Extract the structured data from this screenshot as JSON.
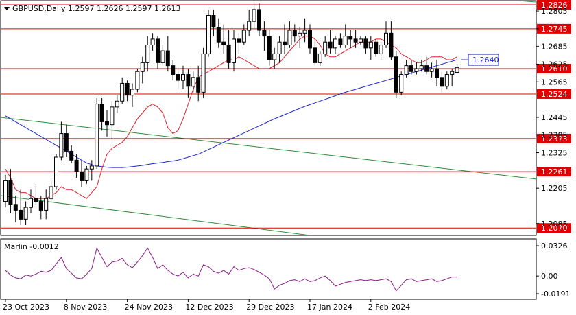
{
  "header": {
    "symbol_line": "GBPUSD,Daily  1.2597  1.2626  1.2597  1.2613",
    "marlin_line": "Marlin -0.0012"
  },
  "colors": {
    "up_candle": "#ffffff",
    "down_candle": "#000000",
    "level_line": "#e00000",
    "fast_ma": "#e0202a",
    "slow_ma": "#1a22d4",
    "trendline": "#2e8b3a",
    "oscillator": "#8a1a8a",
    "grid_frame": "#000000"
  },
  "chart_data": [
    {
      "type": "candlestick",
      "title": "GBPUSD,Daily",
      "ohlc_last": {
        "open": 1.2597,
        "high": 1.2626,
        "low": 1.2597,
        "close": 1.2613
      },
      "ylim": [
        1.2045,
        1.284
      ],
      "y_ticks": [
        "1.2805",
        "1.2745",
        "1.2685",
        "1.2625",
        "1.2565",
        "1.2445",
        "1.2385",
        "1.2325",
        "1.2205",
        "1.2085"
      ],
      "x_labels": [
        "23 Oct 2023",
        "8 Nov 2023",
        "24 Nov 2023",
        "12 Dec 2023",
        "29 Dec 2023",
        "17 Jan 2024",
        "2 Feb 2024"
      ],
      "x_label_positions": [
        0,
        12,
        24,
        36,
        48,
        60,
        72
      ],
      "levels": [
        {
          "label": "1.2826",
          "value": 1.2826
        },
        {
          "label": "1.2745",
          "value": 1.2745
        },
        {
          "label": "1.2610",
          "value": 1.261
        },
        {
          "label": "1.2524",
          "value": 1.2524
        },
        {
          "label": "1.2373",
          "value": 1.2373
        },
        {
          "label": "1.2261",
          "value": 1.2261
        },
        {
          "label": "1.2070",
          "value": 1.207
        }
      ],
      "ma_marker": {
        "label": "1.2640",
        "value": 1.264
      },
      "candles": [
        [
          1.216,
          1.225,
          1.214,
          1.223
        ],
        [
          1.223,
          1.227,
          1.212,
          1.215
        ],
        [
          1.215,
          1.218,
          1.209,
          1.213
        ],
        [
          1.213,
          1.22,
          1.208,
          1.21
        ],
        [
          1.21,
          1.216,
          1.208,
          1.214
        ],
        [
          1.214,
          1.22,
          1.212,
          1.217
        ],
        [
          1.217,
          1.222,
          1.215,
          1.216
        ],
        [
          1.216,
          1.218,
          1.21,
          1.213
        ],
        [
          1.213,
          1.22,
          1.21,
          1.217
        ],
        [
          1.217,
          1.223,
          1.216,
          1.221
        ],
        [
          1.221,
          1.232,
          1.22,
          1.231
        ],
        [
          1.231,
          1.243,
          1.23,
          1.239
        ],
        [
          1.239,
          1.242,
          1.231,
          1.233
        ],
        [
          1.233,
          1.235,
          1.229,
          1.23
        ],
        [
          1.23,
          1.232,
          1.224,
          1.226
        ],
        [
          1.226,
          1.23,
          1.221,
          1.223
        ],
        [
          1.223,
          1.228,
          1.222,
          1.227
        ],
        [
          1.227,
          1.23,
          1.223,
          1.228
        ],
        [
          1.228,
          1.251,
          1.227,
          1.249
        ],
        [
          1.249,
          1.251,
          1.24,
          1.243
        ],
        [
          1.243,
          1.247,
          1.238,
          1.242
        ],
        [
          1.242,
          1.25,
          1.237,
          1.248
        ],
        [
          1.248,
          1.252,
          1.246,
          1.25
        ],
        [
          1.25,
          1.258,
          1.249,
          1.256
        ],
        [
          1.256,
          1.257,
          1.25,
          1.252
        ],
        [
          1.252,
          1.256,
          1.248,
          1.254
        ],
        [
          1.254,
          1.261,
          1.253,
          1.26
        ],
        [
          1.26,
          1.265,
          1.256,
          1.263
        ],
        [
          1.263,
          1.272,
          1.26,
          1.269
        ],
        [
          1.269,
          1.273,
          1.267,
          1.271
        ],
        [
          1.271,
          1.272,
          1.261,
          1.263
        ],
        [
          1.263,
          1.269,
          1.262,
          1.267
        ],
        [
          1.267,
          1.272,
          1.26,
          1.262
        ],
        [
          1.262,
          1.264,
          1.257,
          1.259
        ],
        [
          1.259,
          1.261,
          1.254,
          1.257
        ],
        [
          1.257,
          1.262,
          1.254,
          1.259
        ],
        [
          1.259,
          1.261,
          1.251,
          1.255
        ],
        [
          1.255,
          1.26,
          1.253,
          1.258
        ],
        [
          1.258,
          1.262,
          1.25,
          1.253
        ],
        [
          1.253,
          1.268,
          1.251,
          1.266
        ],
        [
          1.266,
          1.281,
          1.265,
          1.279
        ],
        [
          1.279,
          1.281,
          1.272,
          1.275
        ],
        [
          1.275,
          1.278,
          1.268,
          1.27
        ],
        [
          1.27,
          1.276,
          1.266,
          1.269
        ],
        [
          1.269,
          1.274,
          1.261,
          1.263
        ],
        [
          1.263,
          1.274,
          1.26,
          1.271
        ],
        [
          1.271,
          1.273,
          1.266,
          1.27
        ],
        [
          1.27,
          1.276,
          1.269,
          1.274
        ],
        [
          1.274,
          1.281,
          1.272,
          1.277
        ],
        [
          1.277,
          1.283,
          1.274,
          1.281
        ],
        [
          1.281,
          1.283,
          1.272,
          1.274
        ],
        [
          1.274,
          1.277,
          1.267,
          1.272
        ],
        [
          1.272,
          1.274,
          1.262,
          1.264
        ],
        [
          1.264,
          1.268,
          1.261,
          1.266
        ],
        [
          1.266,
          1.272,
          1.263,
          1.27
        ],
        [
          1.27,
          1.276,
          1.266,
          1.269
        ],
        [
          1.269,
          1.277,
          1.268,
          1.274
        ],
        [
          1.274,
          1.276,
          1.27,
          1.272
        ],
        [
          1.272,
          1.275,
          1.268,
          1.273
        ],
        [
          1.273,
          1.278,
          1.27,
          1.274
        ],
        [
          1.274,
          1.276,
          1.266,
          1.268
        ],
        [
          1.268,
          1.271,
          1.262,
          1.263
        ],
        [
          1.263,
          1.267,
          1.262,
          1.266
        ],
        [
          1.266,
          1.272,
          1.265,
          1.27
        ],
        [
          1.27,
          1.274,
          1.266,
          1.268
        ],
        [
          1.268,
          1.272,
          1.266,
          1.271
        ],
        [
          1.271,
          1.273,
          1.268,
          1.269
        ],
        [
          1.269,
          1.276,
          1.268,
          1.272
        ],
        [
          1.272,
          1.274,
          1.268,
          1.271
        ],
        [
          1.271,
          1.274,
          1.268,
          1.27
        ],
        [
          1.27,
          1.272,
          1.269,
          1.271
        ],
        [
          1.271,
          1.272,
          1.266,
          1.268
        ],
        [
          1.268,
          1.272,
          1.264,
          1.27
        ],
        [
          1.27,
          1.271,
          1.265,
          1.266
        ],
        [
          1.266,
          1.27,
          1.264,
          1.269
        ],
        [
          1.269,
          1.277,
          1.268,
          1.273
        ],
        [
          1.273,
          1.277,
          1.264,
          1.265
        ],
        [
          1.265,
          1.267,
          1.251,
          1.253
        ],
        [
          1.253,
          1.26,
          1.252,
          1.259
        ],
        [
          1.259,
          1.264,
          1.258,
          1.262
        ],
        [
          1.262,
          1.264,
          1.259,
          1.26
        ],
        [
          1.26,
          1.263,
          1.259,
          1.261
        ],
        [
          1.261,
          1.264,
          1.26,
          1.262
        ],
        [
          1.262,
          1.265,
          1.259,
          1.26
        ],
        [
          1.26,
          1.263,
          1.258,
          1.261
        ],
        [
          1.261,
          1.264,
          1.255,
          1.258
        ],
        [
          1.258,
          1.26,
          1.253,
          1.255
        ],
        [
          1.255,
          1.26,
          1.254,
          1.259
        ],
        [
          1.259,
          1.261,
          1.255,
          1.26
        ],
        [
          1.2597,
          1.2626,
          1.2597,
          1.2613
        ]
      ],
      "fast_ma": [
        1.227,
        1.224,
        1.22,
        1.219,
        1.219,
        1.218,
        1.217,
        1.217,
        1.217,
        1.218,
        1.219,
        1.221,
        1.22,
        1.22,
        1.219,
        1.218,
        1.217,
        1.219,
        1.221,
        1.227,
        1.232,
        1.234,
        1.235,
        1.236,
        1.238,
        1.241,
        1.244,
        1.246,
        1.248,
        1.249,
        1.248,
        1.246,
        1.241,
        1.239,
        1.24,
        1.244,
        1.249,
        1.254,
        1.258,
        1.259,
        1.26,
        1.261,
        1.262,
        1.263,
        1.264,
        1.264,
        1.265,
        1.264,
        1.263,
        1.262,
        1.261,
        1.261,
        1.261,
        1.262,
        1.263,
        1.265,
        1.267,
        1.269,
        1.271,
        1.272,
        1.272,
        1.271,
        1.269,
        1.266,
        1.265,
        1.265,
        1.266,
        1.267,
        1.268,
        1.269,
        1.27,
        1.27,
        1.27,
        1.271,
        1.271,
        1.27,
        1.269,
        1.268,
        1.266,
        1.265,
        1.264,
        1.263,
        1.263,
        1.264,
        1.265,
        1.265,
        1.265,
        1.264,
        1.264,
        1.265
      ],
      "slow_ma": [
        1.245,
        1.244,
        1.243,
        1.242,
        1.241,
        1.24,
        1.239,
        1.238,
        1.237,
        1.236,
        1.235,
        1.234,
        1.233,
        1.232,
        1.231,
        1.23,
        1.229,
        1.2285,
        1.228,
        1.2278,
        1.2276,
        1.2275,
        1.2275,
        1.2275,
        1.2276,
        1.2278,
        1.228,
        1.2282,
        1.2285,
        1.2288,
        1.229,
        1.2292,
        1.2295,
        1.2297,
        1.23,
        1.2305,
        1.231,
        1.2315,
        1.232,
        1.2328,
        1.2336,
        1.2344,
        1.2352,
        1.236,
        1.2368,
        1.2376,
        1.2384,
        1.2392,
        1.24,
        1.2408,
        1.2416,
        1.2424,
        1.2432,
        1.244,
        1.2447,
        1.2454,
        1.2461,
        1.2468,
        1.2475,
        1.2482,
        1.2488,
        1.2494,
        1.25,
        1.2506,
        1.2512,
        1.2518,
        1.2524,
        1.253,
        1.2535,
        1.254,
        1.2545,
        1.255,
        1.2555,
        1.256,
        1.2565,
        1.257,
        1.2575,
        1.258,
        1.2585,
        1.259,
        1.2595,
        1.26,
        1.2605,
        1.261,
        1.2615,
        1.262,
        1.2625,
        1.263,
        1.2635,
        1.264
      ],
      "trendlines": [
        {
          "from": [
            -1,
            1.2445
          ],
          "to": [
            105,
            1.2235
          ]
        },
        {
          "from": [
            -1,
            1.218
          ],
          "to": [
            60,
            1.2045
          ]
        },
        {
          "from": [
            80,
            1.2865
          ],
          "to": [
            105,
            1.2835
          ]
        }
      ]
    },
    {
      "type": "line",
      "title": "Marlin",
      "last_value": -0.0012,
      "ylim": [
        -0.025,
        0.04
      ],
      "y_ticks": [
        "0.0326",
        "0.00",
        "-0.0191"
      ],
      "values": [
        0.006,
        0.001,
        -0.002,
        -0.003,
        0.001,
        0.0,
        0.002,
        0.005,
        0.004,
        0.006,
        0.013,
        0.02,
        0.008,
        0.003,
        -0.002,
        -0.003,
        0.002,
        0.008,
        0.03,
        0.02,
        0.01,
        0.015,
        0.016,
        0.019,
        0.012,
        0.009,
        0.015,
        0.022,
        0.03,
        0.02,
        0.008,
        0.012,
        0.006,
        0.002,
        0.0,
        0.004,
        -0.002,
        0.002,
        0.0,
        0.012,
        0.01,
        0.005,
        0.003,
        0.006,
        0.002,
        0.01,
        0.006,
        0.008,
        0.009,
        0.007,
        0.004,
        0.001,
        -0.003,
        -0.014,
        -0.01,
        -0.008,
        -0.005,
        -0.004,
        -0.006,
        -0.003,
        -0.006,
        -0.005,
        -0.002,
        0.0,
        -0.005,
        -0.011,
        -0.009,
        -0.007,
        -0.006,
        -0.005,
        -0.004,
        -0.005,
        -0.004,
        -0.005,
        -0.004,
        -0.003,
        -0.006,
        -0.016,
        -0.01,
        -0.004,
        -0.003,
        -0.006,
        -0.005,
        -0.004,
        -0.003,
        -0.006,
        -0.005,
        -0.003,
        -0.001,
        -0.0012
      ]
    }
  ]
}
